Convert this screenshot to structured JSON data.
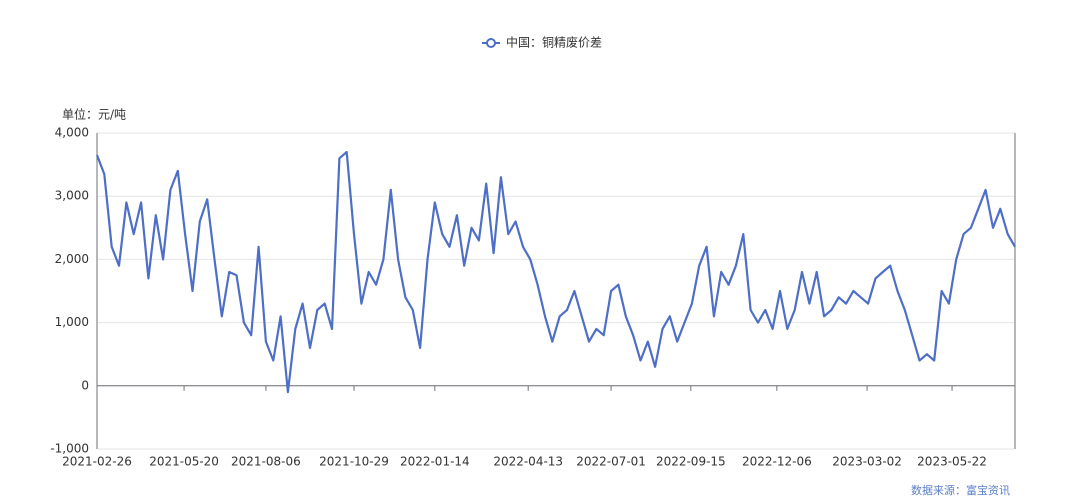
{
  "chart_data": {
    "type": "line",
    "y_label": "单位：元/吨",
    "source": "数据来源：富宝资讯",
    "x": [
      "2021-02-26",
      "2021-03-05",
      "2021-03-12",
      "2021-03-19",
      "2021-03-26",
      "2021-04-02",
      "2021-04-09",
      "2021-04-16",
      "2021-04-23",
      "2021-04-30",
      "2021-05-07",
      "2021-05-14",
      "2021-05-21",
      "2021-05-28",
      "2021-06-04",
      "2021-06-11",
      "2021-06-18",
      "2021-06-25",
      "2021-07-02",
      "2021-07-09",
      "2021-07-16",
      "2021-07-23",
      "2021-07-30",
      "2021-08-06",
      "2021-08-13",
      "2021-08-20",
      "2021-08-27",
      "2021-09-03",
      "2021-09-10",
      "2021-09-17",
      "2021-09-24",
      "2021-10-01",
      "2021-10-08",
      "2021-10-15",
      "2021-10-22",
      "2021-10-29",
      "2021-11-05",
      "2021-11-12",
      "2021-11-19",
      "2021-11-26",
      "2021-12-03",
      "2021-12-10",
      "2021-12-17",
      "2021-12-24",
      "2021-12-31",
      "2022-01-07",
      "2022-01-14",
      "2022-01-21",
      "2022-01-28",
      "2022-02-04",
      "2022-02-11",
      "2022-02-18",
      "2022-02-25",
      "2022-03-04",
      "2022-03-11",
      "2022-03-18",
      "2022-03-25",
      "2022-04-01",
      "2022-04-08",
      "2022-04-15",
      "2022-04-22",
      "2022-04-29",
      "2022-05-06",
      "2022-05-13",
      "2022-05-20",
      "2022-05-27",
      "2022-06-03",
      "2022-06-10",
      "2022-06-17",
      "2022-06-24",
      "2022-07-01",
      "2022-07-08",
      "2022-07-15",
      "2022-07-22",
      "2022-07-29",
      "2022-08-05",
      "2022-08-12",
      "2022-08-19",
      "2022-08-26",
      "2022-09-02",
      "2022-09-09",
      "2022-09-16",
      "2022-09-23",
      "2022-09-30",
      "2022-10-07",
      "2022-10-14",
      "2022-10-21",
      "2022-10-28",
      "2022-11-04",
      "2022-11-11",
      "2022-11-18",
      "2022-11-25",
      "2022-12-02",
      "2022-12-09",
      "2022-12-16",
      "2022-12-23",
      "2022-12-30",
      "2023-01-06",
      "2023-01-13",
      "2023-01-20",
      "2023-01-27",
      "2023-02-03",
      "2023-02-10",
      "2023-02-17",
      "2023-02-24",
      "2023-03-03",
      "2023-03-10",
      "2023-03-17",
      "2023-03-24",
      "2023-03-31",
      "2023-04-07",
      "2023-04-14",
      "2023-04-21",
      "2023-04-28",
      "2023-05-05",
      "2023-05-12",
      "2023-05-19",
      "2023-05-26",
      "2023-06-02",
      "2023-06-09",
      "2023-06-16",
      "2023-06-23",
      "2023-06-30",
      "2023-07-07",
      "2023-07-14",
      "2023-07-21"
    ],
    "series": [
      {
        "name": "中国：铜精废价差",
        "color": "#4e6fc7",
        "values": [
          3650,
          3350,
          2200,
          1900,
          2900,
          2400,
          2900,
          1700,
          2700,
          2000,
          3100,
          3400,
          2400,
          1500,
          2600,
          2950,
          2000,
          1100,
          1800,
          1750,
          1000,
          800,
          2200,
          700,
          400,
          1100,
          -100,
          900,
          1300,
          600,
          1200,
          1300,
          900,
          3600,
          3700,
          2400,
          1300,
          1800,
          1600,
          2000,
          3100,
          2000,
          1400,
          1200,
          600,
          2000,
          2900,
          2400,
          2200,
          2700,
          1900,
          2500,
          2300,
          3200,
          2100,
          3300,
          2400,
          2600,
          2200,
          2000,
          1600,
          1100,
          700,
          1100,
          1200,
          1500,
          1100,
          700,
          900,
          800,
          1500,
          1600,
          1100,
          800,
          400,
          700,
          300,
          900,
          1100,
          700,
          1000,
          1300,
          1900,
          2200,
          1100,
          1800,
          1600,
          1900,
          2400,
          1200,
          1000,
          1200,
          900,
          1500,
          900,
          1200,
          1800,
          1300,
          1800,
          1100,
          1200,
          1400,
          1300,
          1500,
          1400,
          1300,
          1700,
          1800,
          1900,
          1500,
          1200,
          800,
          400,
          500,
          400,
          1500,
          1300,
          2000,
          2400,
          2500,
          2800,
          3100,
          2500,
          2800,
          2400,
          2200
        ]
      }
    ],
    "xlim": [
      "2021-02-26",
      "2023-07-21"
    ],
    "xticks": [
      "2021-02-26",
      "2021-05-20",
      "2021-08-06",
      "2021-10-29",
      "2022-01-14",
      "2022-04-13",
      "2022-07-01",
      "2022-09-15",
      "2022-12-06",
      "2023-03-02",
      "2023-05-22"
    ],
    "ylim": [
      -1000,
      4000
    ],
    "yticks": [
      {
        "value": -1000,
        "label": "-1,000"
      },
      0,
      {
        "value": 1000,
        "label": "1,000"
      },
      {
        "value": 2000,
        "label": "2,000"
      },
      {
        "value": 3000,
        "label": "3,000"
      },
      {
        "value": 4000,
        "label": "4,000"
      }
    ],
    "grid": true,
    "legend": "top"
  }
}
